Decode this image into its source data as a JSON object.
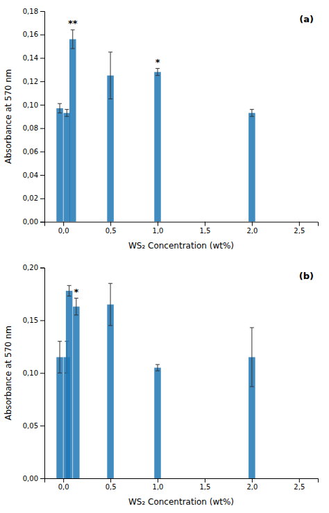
{
  "chart_data": [
    {
      "type": "bar",
      "title": "(a)",
      "x": [
        0.0,
        0.1,
        0.5,
        1.0,
        2.0
      ],
      "series": [
        {
          "values": [
            0.097,
            0.156,
            0.125,
            0.128,
            0.093
          ],
          "errors": [
            0.004,
            0.008,
            0.02,
            0.003,
            0.003
          ]
        },
        {
          "values": [
            0.093,
            null,
            null,
            null,
            null
          ],
          "errors": [
            0.003,
            null,
            null,
            null,
            null
          ]
        }
      ],
      "annotations": [
        {
          "text": "**",
          "x": 0.1
        },
        {
          "text": "*",
          "x": 1.0
        }
      ],
      "xlabel": "WS₂ Concentration (wt%)",
      "ylabel": "Absorbance at 570 nm",
      "xlim": [
        -0.2,
        2.7
      ],
      "xticks": [
        {
          "value": 0.0,
          "label": "0,0"
        },
        {
          "value": 0.5,
          "label": "0,5"
        },
        {
          "value": 1.0,
          "label": "1,0"
        },
        {
          "value": 1.5,
          "label": "1,5"
        },
        {
          "value": 2.0,
          "label": "2,0"
        },
        {
          "value": 2.5,
          "label": "2,5"
        }
      ],
      "ylim": [
        0.0,
        0.18
      ],
      "yticks": [
        {
          "value": 0.0,
          "label": "0,00"
        },
        {
          "value": 0.02,
          "label": "0,02"
        },
        {
          "value": 0.04,
          "label": "0,04"
        },
        {
          "value": 0.06,
          "label": "0,06"
        },
        {
          "value": 0.08,
          "label": "0,08"
        },
        {
          "value": 0.1,
          "label": "0,10"
        },
        {
          "value": 0.12,
          "label": "0,12"
        },
        {
          "value": 0.14,
          "label": "0,14"
        },
        {
          "value": 0.16,
          "label": "0,16"
        },
        {
          "value": 0.18,
          "label": "0,18"
        }
      ],
      "grid": false
    },
    {
      "type": "bar",
      "title": "(b)",
      "x": [
        0.0,
        0.1,
        0.5,
        1.0,
        2.0
      ],
      "series": [
        {
          "values": [
            0.115,
            0.178,
            0.165,
            0.105,
            0.115
          ],
          "errors": [
            0.015,
            0.005,
            0.02,
            0.003,
            0.028
          ]
        },
        {
          "values": [
            0.115,
            0.163,
            null,
            null,
            null
          ],
          "errors": [
            0.015,
            0.008,
            null,
            null,
            null
          ]
        }
      ],
      "annotations": [
        {
          "text": "*",
          "x": 0.1
        }
      ],
      "xlabel": "WS₂ Concentration (wt%)",
      "ylabel": "Absorbance at 570 nm",
      "xlim": [
        -0.2,
        2.7
      ],
      "xticks": [
        {
          "value": 0.0,
          "label": "0,0"
        },
        {
          "value": 0.5,
          "label": "0,5"
        },
        {
          "value": 1.0,
          "label": "1,0"
        },
        {
          "value": 1.5,
          "label": "1,5"
        },
        {
          "value": 2.0,
          "label": "2,0"
        },
        {
          "value": 2.5,
          "label": "2,5"
        }
      ],
      "ylim": [
        0.0,
        0.2
      ],
      "yticks": [
        {
          "value": 0.0,
          "label": "0,00"
        },
        {
          "value": 0.05,
          "label": "0,05"
        },
        {
          "value": 0.1,
          "label": "0,10"
        },
        {
          "value": 0.15,
          "label": "0,15"
        },
        {
          "value": 0.2,
          "label": "0,20"
        }
      ],
      "grid": false
    }
  ]
}
